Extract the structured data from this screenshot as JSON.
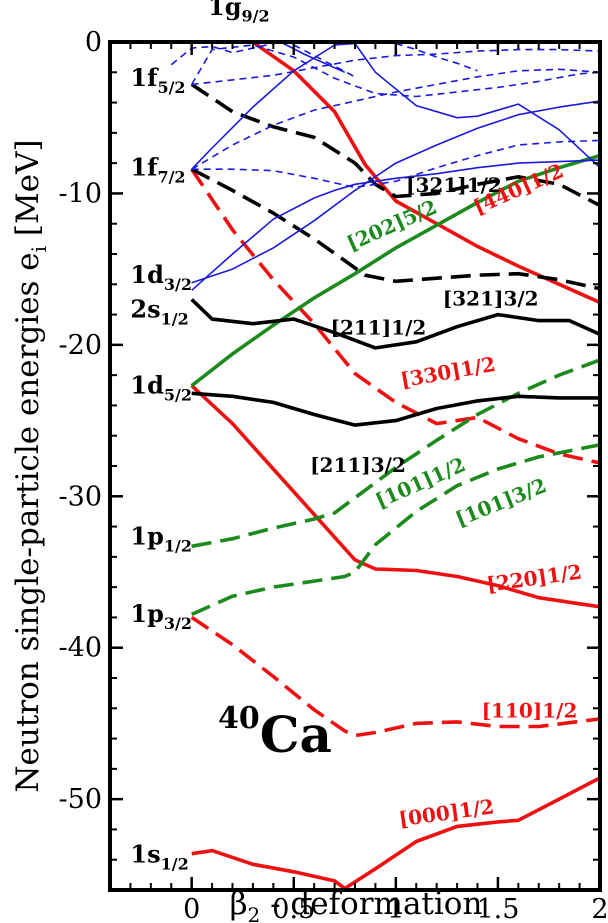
{
  "chart_data": {
    "type": "line",
    "xlabel": {
      "base": "β",
      "sub": "2",
      "rest": " - deformation"
    },
    "ylabel": {
      "base": "Neutron  single-particle  energies  e",
      "sub": "i",
      "rest": "  [MeV]"
    },
    "xlim": [
      -0.4,
      2.0
    ],
    "ylim": [
      -56,
      0
    ],
    "xticks": [
      0,
      0.5,
      1,
      1.5,
      2
    ],
    "xtick_labels": [
      "0",
      "0.5",
      "1",
      "1.5",
      "2"
    ],
    "yticks": [
      0,
      -10,
      -20,
      -30,
      -40,
      -50
    ],
    "ytick_labels": [
      "0",
      "-10",
      "-20",
      "-30",
      "-40",
      "-50"
    ],
    "grid": false,
    "nucleus": {
      "mass": "40",
      "symbol": "Ca"
    },
    "colors": {
      "red": "#ee1111",
      "green": "#1d8a1d",
      "black": "#000000",
      "blue": "#1a1adb"
    },
    "spherical_levels": [
      {
        "base": "1g",
        "sub": "9/2",
        "x": 0.08,
        "y": 1.8
      },
      {
        "base": "1f",
        "sub": "5/2",
        "x": -0.3,
        "y": -2.9
      },
      {
        "base": "1f",
        "sub": "7/2",
        "x": -0.3,
        "y": -8.8
      },
      {
        "base": "1d",
        "sub": "3/2",
        "x": -0.3,
        "y": -15.9
      },
      {
        "base": "2s",
        "sub": "1/2",
        "x": -0.3,
        "y": -18.2
      },
      {
        "base": "1d",
        "sub": "5/2",
        "x": -0.3,
        "y": -23.2
      },
      {
        "base": "1p",
        "sub": "1/2",
        "x": -0.3,
        "y": -33.2
      },
      {
        "base": "1p",
        "sub": "3/2",
        "x": -0.3,
        "y": -38.3
      },
      {
        "base": "1s",
        "sub": "1/2",
        "x": -0.3,
        "y": -54.2
      }
    ],
    "nilsson_labels": [
      {
        "text": "[321]1/2",
        "color": "black",
        "x": 1.05,
        "y": -9.9,
        "angle": 0
      },
      {
        "text": "[440]1/2",
        "color": "red",
        "x": 1.4,
        "y": -11.4,
        "angle": -24
      },
      {
        "text": "[202]5/2",
        "color": "green",
        "x": 0.78,
        "y": -13.8,
        "angle": -24
      },
      {
        "text": "[321]3/2",
        "color": "black",
        "x": 1.23,
        "y": -17.4,
        "angle": 0
      },
      {
        "text": "[211]1/2",
        "color": "black",
        "x": 0.68,
        "y": -19.3,
        "angle": 0
      },
      {
        "text": "[330]1/2",
        "color": "red",
        "x": 1.03,
        "y": -22.8,
        "angle": -10
      },
      {
        "text": "[211]3/2",
        "color": "black",
        "x": 0.58,
        "y": -28.4,
        "angle": 0
      },
      {
        "text": "[101]1/2",
        "color": "green",
        "x": 0.92,
        "y": -30.8,
        "angle": -24
      },
      {
        "text": "[101]3/2",
        "color": "green",
        "x": 1.31,
        "y": -32.0,
        "angle": -22
      },
      {
        "text": "[220]1/2",
        "color": "red",
        "x": 1.45,
        "y": -36.3,
        "angle": -8
      },
      {
        "text": "[110]1/2",
        "color": "red",
        "x": 1.42,
        "y": -44.6,
        "angle": 0
      },
      {
        "text": "[000]1/2",
        "color": "red",
        "x": 1.02,
        "y": -51.8,
        "angle": -8
      }
    ],
    "series": [
      {
        "color": "red",
        "dash": false,
        "x": [
          0,
          0.1,
          0.3,
          0.5,
          0.7,
          0.75,
          0.9,
          1.1,
          1.3,
          1.5,
          1.6,
          1.8,
          2.0
        ],
        "y": [
          -53.6,
          -53.4,
          -54.3,
          -54.8,
          -55.4,
          -55.9,
          -54.6,
          -52.8,
          -51.8,
          -51.5,
          -51.4,
          -50.0,
          -48.6
        ]
      },
      {
        "color": "red",
        "dash": true,
        "x": [
          0,
          0.2,
          0.4,
          0.6,
          0.75,
          0.8,
          0.9,
          1.1,
          1.3,
          1.5,
          1.7,
          2.0
        ],
        "y": [
          -38.0,
          -39.8,
          -41.9,
          -44.1,
          -45.5,
          -45.8,
          -45.6,
          -45.0,
          -44.9,
          -45.2,
          -45.2,
          -44.7
        ]
      },
      {
        "color": "red",
        "dash": false,
        "x": [
          0,
          0.2,
          0.4,
          0.6,
          0.8,
          0.9,
          1.1,
          1.3,
          1.5,
          1.7,
          2.0
        ],
        "y": [
          -22.7,
          -25.2,
          -28.2,
          -31.2,
          -34.2,
          -34.8,
          -34.9,
          -35.3,
          -35.9,
          -36.7,
          -37.3
        ]
      },
      {
        "color": "red",
        "dash": true,
        "x": [
          0,
          0.2,
          0.4,
          0.6,
          0.8,
          1.0,
          1.2,
          1.4,
          1.6,
          1.8,
          2.0
        ],
        "y": [
          -8.4,
          -12.4,
          -15.7,
          -18.6,
          -21.9,
          -23.8,
          -25.2,
          -24.8,
          -26.2,
          -27.2,
          -27.8
        ]
      },
      {
        "color": "red",
        "dash": false,
        "x": [
          0.3,
          0.5,
          0.7,
          0.85,
          1.0,
          1.2,
          1.4,
          1.6,
          1.8,
          2.0
        ],
        "y": [
          0.0,
          -1.9,
          -4.6,
          -8.1,
          -10.5,
          -12.0,
          -13.5,
          -14.8,
          -16.0,
          -17.2
        ]
      },
      {
        "color": "green",
        "dash": true,
        "x": [
          0,
          0.2,
          0.4,
          0.6,
          0.75,
          0.8,
          0.9,
          1.1,
          1.3,
          1.5,
          1.7,
          2.0
        ],
        "y": [
          -37.8,
          -36.6,
          -36.0,
          -35.6,
          -35.3,
          -35.0,
          -33.2,
          -31.0,
          -29.3,
          -28.2,
          -27.4,
          -26.6
        ]
      },
      {
        "color": "green",
        "dash": true,
        "x": [
          0,
          0.2,
          0.4,
          0.6,
          0.7,
          0.8,
          1.0,
          1.2,
          1.4,
          1.6,
          1.8,
          2.0
        ],
        "y": [
          -33.3,
          -32.8,
          -32.1,
          -31.5,
          -31.1,
          -30.1,
          -28.1,
          -26.3,
          -24.6,
          -23.2,
          -22.0,
          -21.0
        ]
      },
      {
        "color": "green",
        "dash": false,
        "x": [
          0,
          0.2,
          0.4,
          0.6,
          0.8,
          1.0,
          1.2,
          1.4,
          1.6,
          1.8,
          2.0
        ],
        "y": [
          -22.7,
          -20.6,
          -18.7,
          -16.9,
          -15.3,
          -13.6,
          -12.1,
          -10.6,
          -9.2,
          -8.3,
          -7.5
        ]
      },
      {
        "color": "black",
        "dash": false,
        "x": [
          0,
          0.2,
          0.4,
          0.6,
          0.8,
          1.0,
          1.2,
          1.4,
          1.6,
          1.8,
          2.0
        ],
        "y": [
          -23.2,
          -23.4,
          -23.8,
          -24.6,
          -25.3,
          -25.0,
          -24.2,
          -23.7,
          -23.4,
          -23.5,
          -23.5
        ]
      },
      {
        "color": "black",
        "dash": false,
        "x": [
          0,
          0.1,
          0.3,
          0.5,
          0.7,
          0.9,
          1.1,
          1.3,
          1.5,
          1.7,
          1.85,
          2.0
        ],
        "y": [
          -17.0,
          -18.3,
          -18.6,
          -18.3,
          -19.2,
          -20.2,
          -19.8,
          -18.8,
          -18.0,
          -18.4,
          -18.4,
          -19.3
        ]
      },
      {
        "color": "black",
        "dash": true,
        "x": [
          0,
          0.2,
          0.4,
          0.6,
          0.85,
          1.0,
          1.2,
          1.4,
          1.6,
          1.8,
          2.0
        ],
        "y": [
          -8.4,
          -9.8,
          -11.3,
          -13.0,
          -15.4,
          -15.8,
          -15.6,
          -15.4,
          -15.3,
          -15.7,
          -16.3
        ]
      },
      {
        "color": "black",
        "dash": true,
        "x": [
          0,
          0.2,
          0.4,
          0.6,
          0.8,
          0.9,
          1.0,
          1.2,
          1.4,
          1.6,
          1.8,
          2.0
        ],
        "y": [
          -2.8,
          -4.6,
          -5.6,
          -6.3,
          -8.0,
          -9.4,
          -10.2,
          -10.0,
          -9.4,
          -8.9,
          -9.4,
          -10.8
        ]
      },
      {
        "color": "blue",
        "dash": false,
        "x": [
          0,
          0.2,
          0.4,
          0.6,
          0.7,
          0.8,
          1.0,
          1.2,
          1.4,
          1.6,
          1.8,
          2.0
        ],
        "y": [
          -16.4,
          -14.0,
          -11.7,
          -10.3,
          -9.8,
          -9.4,
          -9.0,
          -8.7,
          -8.3,
          -8.0,
          -7.9,
          -7.8
        ]
      },
      {
        "color": "blue",
        "dash": false,
        "x": [
          0,
          0.2,
          0.4,
          0.6,
          0.8,
          1.0,
          1.2,
          1.4,
          1.6,
          1.8,
          2.0
        ],
        "y": [
          -15.9,
          -15.0,
          -13.6,
          -11.8,
          -9.8,
          -8.0,
          -6.8,
          -5.7,
          -4.8,
          -4.3,
          -3.9
        ]
      },
      {
        "color": "blue",
        "dash": false,
        "x": [
          0,
          0.1,
          0.3,
          0.5,
          0.7,
          0.8,
          0.9,
          1.1,
          1.3,
          1.4,
          1.6,
          1.8,
          2.0
        ],
        "y": [
          -8.4,
          -7.0,
          -4.3,
          -1.9,
          -0.2,
          -0.1,
          -2.0,
          -4.2,
          -5.0,
          -4.9,
          -4.1,
          -5.8,
          -8.3
        ]
      },
      {
        "color": "blue",
        "dash": true,
        "x": [
          0,
          0.2,
          0.4,
          0.6,
          0.8,
          1.0,
          1.2,
          1.4,
          1.6,
          1.8,
          2.0
        ],
        "y": [
          -8.4,
          -8.4,
          -8.5,
          -9.0,
          -9.6,
          -9.2,
          -8.3,
          -7.5,
          -6.8,
          -6.6,
          -6.5
        ]
      },
      {
        "color": "blue",
        "dash": true,
        "x": [
          0,
          0.2,
          0.4,
          0.6,
          0.8,
          1.0,
          1.2,
          1.4,
          1.6,
          1.8,
          2.0
        ],
        "y": [
          -8.4,
          -6.8,
          -5.5,
          -4.5,
          -3.9,
          -3.3,
          -2.8,
          -2.3,
          -1.9,
          -1.8,
          -2.0
        ]
      },
      {
        "color": "blue",
        "dash": true,
        "x": [
          0,
          0.1,
          0.3,
          0.5,
          0.7,
          0.9,
          1.1,
          1.3,
          1.5,
          1.7,
          1.9,
          2.0
        ],
        "y": [
          -2.8,
          -0.5,
          -0.2,
          -1.0,
          -2.4,
          -3.4,
          -3.6,
          -3.3,
          -3.0,
          -2.6,
          -2.1,
          -2.0
        ]
      },
      {
        "color": "blue",
        "dash": true,
        "x": [
          0,
          0.2,
          0.4,
          0.6,
          0.8,
          1.0,
          1.2,
          1.4,
          1.6,
          1.8,
          2.0
        ],
        "y": [
          -2.8,
          -2.5,
          -2.2,
          -1.7,
          -1.2,
          -0.9,
          -0.8,
          -0.6,
          -0.5,
          -0.5,
          -0.6
        ]
      },
      {
        "color": "blue",
        "dash": true,
        "x": [
          -0.1,
          0.0,
          0.1,
          0.2,
          0.3,
          0.4
        ],
        "y": [
          -1.5,
          -0.4,
          -0.3,
          -0.7,
          -0.4,
          -0.1
        ]
      },
      {
        "color": "blue",
        "dash": true,
        "x": [
          0.5,
          0.6,
          0.7,
          0.8
        ],
        "y": [
          -0.2,
          -0.9,
          -1.6,
          -2.3
        ]
      },
      {
        "color": "blue",
        "dash": true,
        "x": [
          1.0,
          1.1,
          1.2,
          1.3,
          1.4
        ],
        "y": [
          -0.1,
          -0.5,
          -1.0,
          -1.4,
          -1.9
        ]
      },
      {
        "color": "blue",
        "dash": false,
        "x": [
          0.45,
          0.55,
          0.65,
          0.75
        ],
        "y": [
          -0.1,
          -0.8,
          -1.4,
          -2.0
        ]
      }
    ]
  }
}
